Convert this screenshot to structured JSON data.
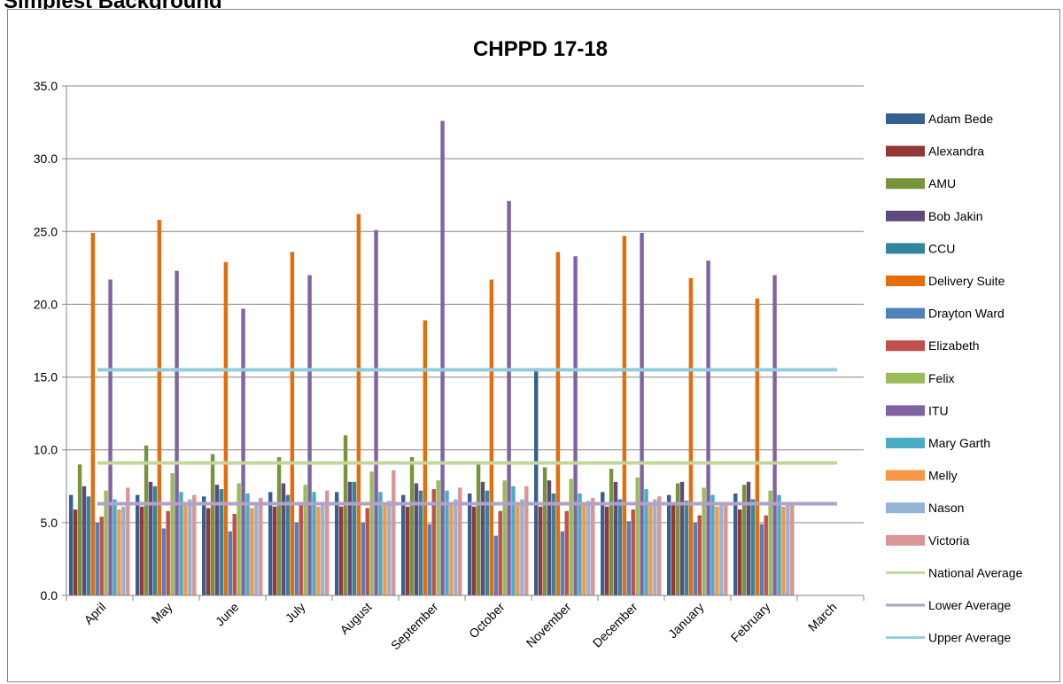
{
  "page_heading": "Simplest Background",
  "chart_data": {
    "type": "bar",
    "title": "CHPPD 17-18",
    "xlabel": "",
    "ylabel": "",
    "ylim": [
      0,
      35
    ],
    "yticks": [
      "0.0",
      "5.0",
      "10.0",
      "15.0",
      "20.0",
      "25.0",
      "30.0",
      "35.0"
    ],
    "ytick_values": [
      0,
      5,
      10,
      15,
      20,
      25,
      30,
      35
    ],
    "grid": true,
    "legend_position": "right",
    "categories": [
      "April",
      "May",
      "June",
      "July",
      "August",
      "September",
      "October",
      "November",
      "December",
      "January",
      "February",
      "March"
    ],
    "series": [
      {
        "name": "Adam Bede",
        "color": "#376092",
        "values": [
          6.9,
          6.9,
          6.8,
          7.1,
          7.1,
          6.9,
          7.0,
          15.4,
          7.1,
          6.9,
          7.0,
          null
        ]
      },
      {
        "name": "Alexandra",
        "color": "#953735",
        "values": [
          5.9,
          6.1,
          6.0,
          6.1,
          6.1,
          6.1,
          6.1,
          6.1,
          6.1,
          6.3,
          5.9,
          null
        ]
      },
      {
        "name": "AMU",
        "color": "#77933C",
        "values": [
          9.0,
          10.3,
          9.7,
          9.5,
          11.0,
          9.5,
          9.0,
          8.8,
          8.7,
          7.7,
          7.6,
          null
        ]
      },
      {
        "name": "Bob Jakin",
        "color": "#604A7B",
        "values": [
          7.5,
          7.8,
          7.6,
          7.7,
          7.8,
          7.7,
          7.8,
          7.9,
          7.8,
          7.8,
          7.8,
          null
        ]
      },
      {
        "name": "CCU",
        "color": "#31859C",
        "values": [
          6.8,
          7.5,
          7.3,
          6.9,
          7.8,
          7.2,
          7.2,
          7.0,
          6.6,
          6.5,
          6.6,
          null
        ]
      },
      {
        "name": "Delivery Suite",
        "color": "#E46C0A",
        "values": [
          24.9,
          25.8,
          22.9,
          23.6,
          26.2,
          18.9,
          21.7,
          23.6,
          24.7,
          21.8,
          20.4,
          null
        ]
      },
      {
        "name": "Drayton Ward",
        "color": "#4F81BD",
        "values": [
          5.0,
          4.6,
          4.4,
          5.0,
          5.0,
          4.9,
          4.1,
          4.4,
          5.1,
          5.0,
          4.9,
          null
        ]
      },
      {
        "name": "Elizabeth",
        "color": "#C0504D",
        "values": [
          5.4,
          5.8,
          5.6,
          6.2,
          6.0,
          7.3,
          5.8,
          5.8,
          5.9,
          5.5,
          5.5,
          null
        ]
      },
      {
        "name": "Felix",
        "color": "#9BBB59",
        "values": [
          7.2,
          8.4,
          7.7,
          7.6,
          8.5,
          7.9,
          7.9,
          8.0,
          8.1,
          7.4,
          7.2,
          null
        ]
      },
      {
        "name": "ITU",
        "color": "#8064A2",
        "values": [
          21.7,
          22.3,
          19.7,
          22.0,
          25.1,
          32.6,
          27.1,
          23.3,
          24.9,
          23.0,
          22.0,
          null
        ]
      },
      {
        "name": "Mary Garth",
        "color": "#4BACC6",
        "values": [
          6.6,
          7.1,
          7.0,
          7.1,
          7.1,
          7.2,
          7.5,
          7.0,
          7.3,
          6.9,
          6.9,
          null
        ]
      },
      {
        "name": "Melly",
        "color": "#F79646",
        "values": [
          5.9,
          6.3,
          6.0,
          6.1,
          6.2,
          6.2,
          6.3,
          6.2,
          6.3,
          6.1,
          6.1,
          null
        ]
      },
      {
        "name": "Nason",
        "color": "#95B3D7",
        "values": [
          6.1,
          6.6,
          6.4,
          6.2,
          6.5,
          6.6,
          6.6,
          6.5,
          6.6,
          6.3,
          6.2,
          null
        ]
      },
      {
        "name": "Victoria",
        "color": "#D99694",
        "values": [
          7.4,
          6.9,
          6.7,
          7.2,
          8.6,
          7.4,
          7.5,
          6.7,
          6.8,
          6.3,
          6.3,
          null
        ]
      }
    ],
    "reference_lines": [
      {
        "name": "National Average",
        "color": "#C3D69B",
        "value": 9.1
      },
      {
        "name": "Lower Average",
        "color": "#B3A2C7",
        "value": 6.3
      },
      {
        "name": "Upper Average",
        "color": "#93CDDD",
        "value": 15.5
      }
    ]
  }
}
